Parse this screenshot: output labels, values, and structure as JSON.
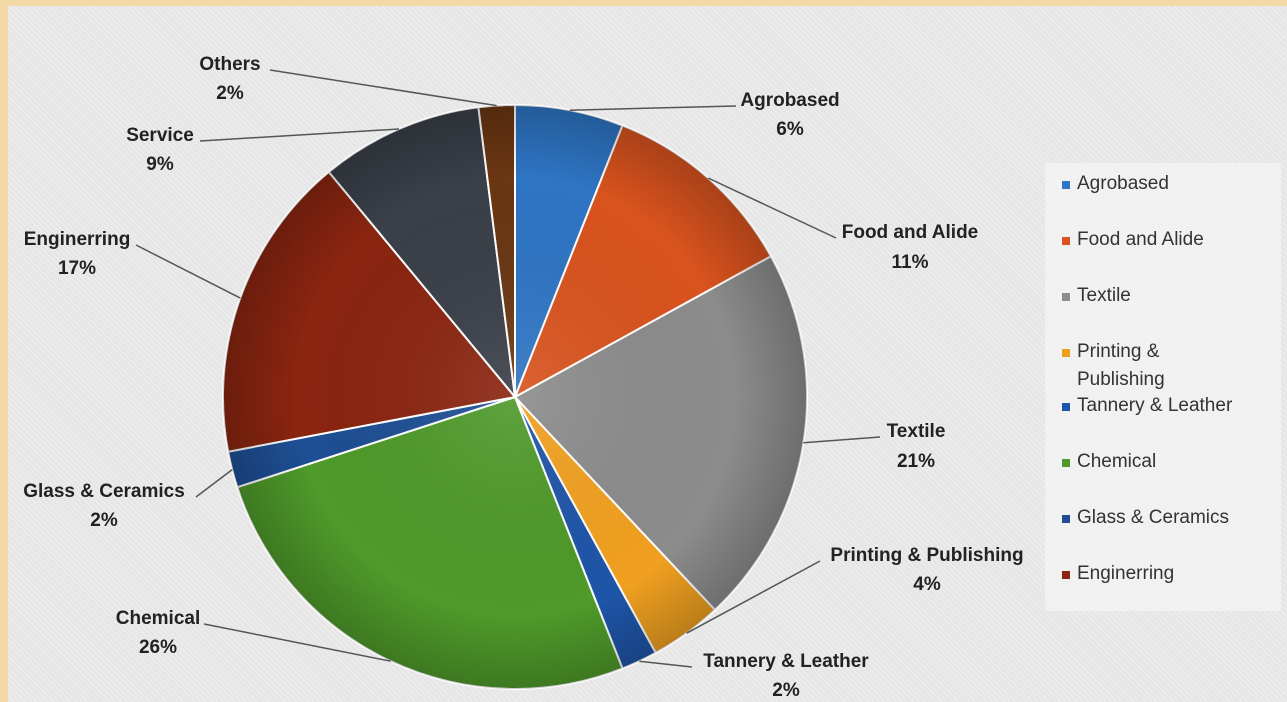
{
  "chart_data": {
    "type": "pie",
    "title": "",
    "categories": [
      "Agrobased",
      "Food and Alide",
      "Textile",
      "Printing & Publishing",
      "Tannery & Leather",
      "Chemical",
      "Glass & Ceramics",
      "Enginerring",
      "Service",
      "Others"
    ],
    "values": [
      6,
      11,
      21,
      4,
      2,
      26,
      2,
      17,
      9,
      2
    ],
    "value_labels": [
      "6%",
      "11%",
      "21%",
      "4%",
      "2%",
      "26%",
      "2%",
      "17%",
      "9%",
      "2%"
    ],
    "colors": [
      "#2e75c4",
      "#d9531e",
      "#8c8c8c",
      "#f0a020",
      "#1f55a8",
      "#4e9a2a",
      "#1e4f94",
      "#8a2510",
      "#3a3f48",
      "#6b3612"
    ],
    "legend": {
      "placement": "right",
      "entries": [
        "Agrobased",
        "Food and Alide",
        "Textile",
        "Printing & Publishing",
        "Tannery & Leather",
        "Chemical",
        "Glass & Ceramics",
        "Enginerring"
      ]
    }
  }
}
